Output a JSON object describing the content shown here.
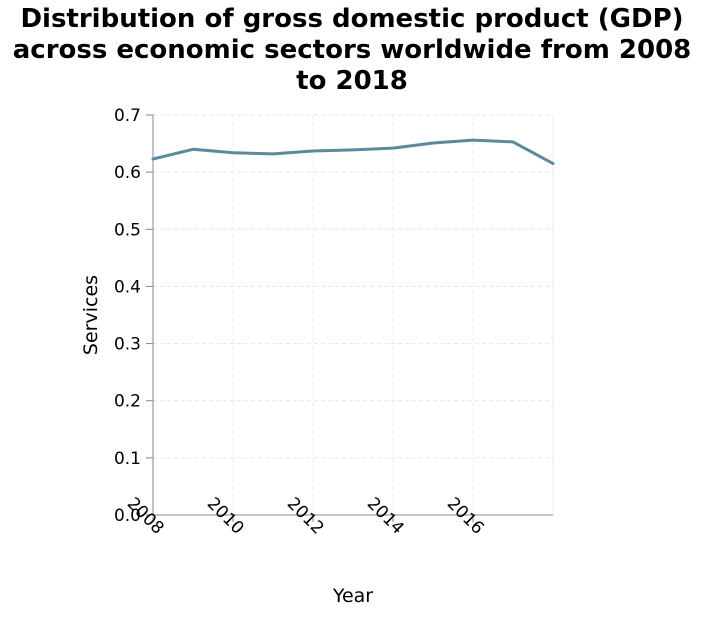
{
  "chart_data": {
    "type": "line",
    "title_lines": [
      "Distribution of gross domestic product (GDP)",
      "across economic sectors worldwide from 2008",
      "to 2018"
    ],
    "xlabel": "Year",
    "ylabel": "Services",
    "xlim": [
      2008,
      2018
    ],
    "ylim": [
      0,
      0.7
    ],
    "x_ticks": [
      2008,
      2010,
      2012,
      2014,
      2016
    ],
    "y_ticks": [
      0.0,
      0.1,
      0.2,
      0.3,
      0.4,
      0.5,
      0.6,
      0.7
    ],
    "y_tick_labels": [
      "0.0",
      "0.1",
      "0.2",
      "0.3",
      "0.4",
      "0.5",
      "0.6",
      "0.7"
    ],
    "grid": true,
    "series": [
      {
        "color": "#5b8a9c",
        "x": [
          2008,
          2009,
          2010,
          2011,
          2012,
          2013,
          2014,
          2015,
          2016,
          2017,
          2018
        ],
        "y": [
          0.623,
          0.64,
          0.634,
          0.632,
          0.637,
          0.639,
          0.642,
          0.651,
          0.656,
          0.653,
          0.615
        ]
      }
    ]
  }
}
